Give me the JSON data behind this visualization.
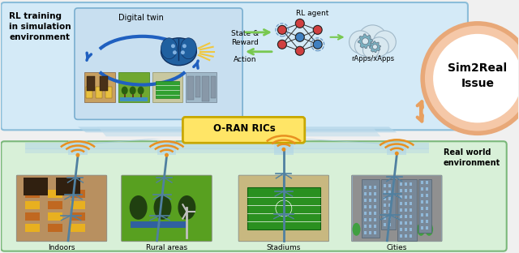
{
  "bg_color": "#f0f0f0",
  "top_box_color": "#d4eaf7",
  "top_box_edge": "#8bbdd9",
  "dt_box_color": "#c8dff0",
  "dt_box_edge": "#7aafd0",
  "bottom_box_color": "#d8f0d8",
  "bottom_box_edge": "#7ab87a",
  "sim2real_circle_fill": "#f5c8a8",
  "sim2real_circle_edge": "#e8a878",
  "sim2real_inner_fill": "#ffffff",
  "oran_box_color": "#ffe566",
  "oran_box_edge": "#c8a800",
  "arrow_green": "#78c850",
  "arrow_blue": "#7aafd0",
  "connector_blue": "#a0c8e0",
  "text_rl_training": "RL training\nin simulation\nenvironment",
  "text_digital_twin": "Digital twin",
  "text_state_reward": "State &\nReward",
  "text_action": "Action",
  "text_rl_agent": "RL agent",
  "text_rapps": "rApps/xApps",
  "text_oran": "O-RAN RICs",
  "text_sim2real": "Sim2Real\nIssue",
  "text_real_world": "Real world\nenvironment",
  "text_indoors": "Indoors",
  "text_rural": "Rural areas",
  "text_stadiums": "Stadiums",
  "text_cities": "Cities",
  "figsize": [
    6.4,
    3.12
  ],
  "dpi": 100
}
